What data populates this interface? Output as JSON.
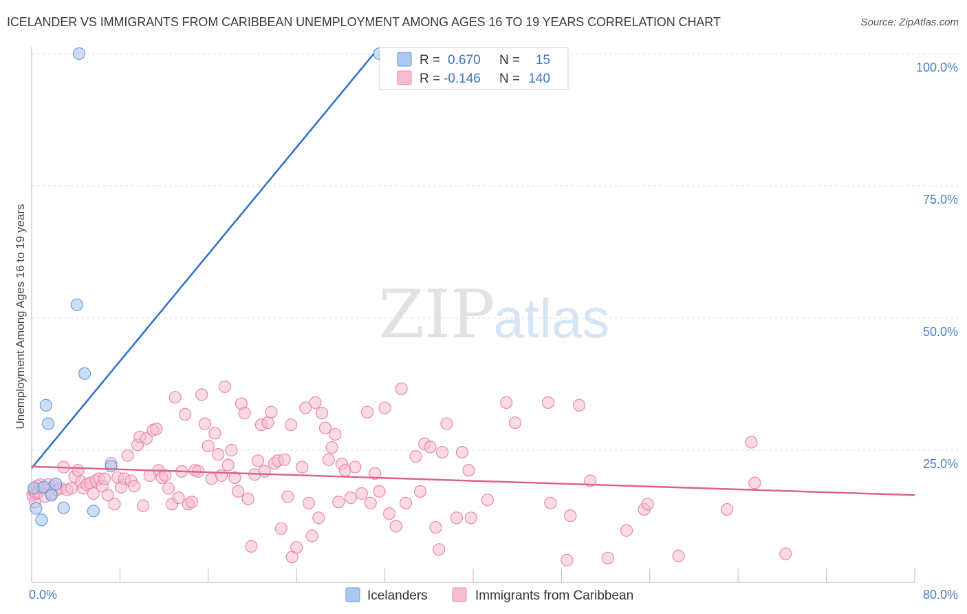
{
  "chart_data": {
    "type": "scatter",
    "title": "ICELANDER VS IMMIGRANTS FROM CARIBBEAN UNEMPLOYMENT AMONG AGES 16 TO 19 YEARS CORRELATION CHART",
    "source": "Source: ZipAtlas.com",
    "xlabel": "",
    "ylabel": "Unemployment Among Ages 16 to 19 years",
    "xlim": [
      0,
      80
    ],
    "ylim": [
      0,
      100
    ],
    "x_tick_labels": [
      "0.0%",
      "80.0%"
    ],
    "y_tick_values": [
      25,
      50,
      75,
      100
    ],
    "y_tick_labels": [
      "25.0%",
      "50.0%",
      "75.0%",
      "100.0%"
    ],
    "watermark": {
      "part1": "ZIP",
      "part2": "atlas"
    },
    "legend_top": [
      {
        "r_label": "R =",
        "r_value": "0.670",
        "n_label": "N =",
        "n_value": "15"
      },
      {
        "r_label": "R =",
        "r_value": "-0.146",
        "n_label": "N =",
        "n_value": "140"
      }
    ],
    "colors": {
      "blue_fill": "#aac8f0",
      "blue_stroke": "#6a9ad8",
      "blue_line": "#2b6fcc",
      "pink_fill": "#f6bccf",
      "pink_stroke": "#e889a8",
      "pink_line": "#e0608e",
      "axis_text": "#4a7fc8",
      "grid": "#dddddd"
    },
    "series": [
      {
        "name": "Icelanders",
        "trend": {
          "x": [
            0,
            31
          ],
          "y": [
            21.6,
            100
          ]
        },
        "points": [
          [
            0.2,
            17.8
          ],
          [
            0.4,
            14.0
          ],
          [
            0.9,
            11.8
          ],
          [
            1.1,
            18.0
          ],
          [
            1.3,
            33.5
          ],
          [
            1.5,
            30.0
          ],
          [
            1.8,
            16.5
          ],
          [
            2.2,
            18.6
          ],
          [
            2.9,
            14.1
          ],
          [
            4.1,
            52.5
          ],
          [
            4.3,
            100
          ],
          [
            4.8,
            39.5
          ],
          [
            5.6,
            13.5
          ],
          [
            7.2,
            22.0
          ],
          [
            31.5,
            100
          ]
        ]
      },
      {
        "name": "Immigrants from Caribbean",
        "trend": {
          "x": [
            0,
            80
          ],
          "y": [
            21.9,
            16.5
          ]
        },
        "points": [
          [
            0.1,
            16.5
          ],
          [
            0.2,
            17.2
          ],
          [
            0.3,
            15.2
          ],
          [
            0.4,
            16.8
          ],
          [
            0.5,
            18.2
          ],
          [
            0.6,
            17.0
          ],
          [
            0.8,
            18.5
          ],
          [
            1.0,
            17.8
          ],
          [
            1.2,
            16.2
          ],
          [
            1.5,
            18.5
          ],
          [
            1.8,
            16.8
          ],
          [
            2.0,
            18.2
          ],
          [
            2.3,
            17.5
          ],
          [
            2.6,
            17.8
          ],
          [
            2.9,
            21.8
          ],
          [
            3.2,
            17.5
          ],
          [
            3.6,
            17.8
          ],
          [
            3.9,
            20.0
          ],
          [
            4.2,
            21.2
          ],
          [
            4.5,
            19.0
          ],
          [
            4.7,
            17.8
          ],
          [
            5.0,
            18.5
          ],
          [
            5.3,
            18.8
          ],
          [
            5.6,
            16.8
          ],
          [
            5.8,
            19.2
          ],
          [
            6.1,
            19.6
          ],
          [
            6.4,
            18.2
          ],
          [
            6.6,
            19.6
          ],
          [
            6.9,
            16.5
          ],
          [
            7.2,
            22.5
          ],
          [
            7.5,
            14.8
          ],
          [
            7.8,
            19.8
          ],
          [
            8.1,
            18.0
          ],
          [
            8.4,
            19.6
          ],
          [
            8.7,
            24.0
          ],
          [
            9.0,
            19.2
          ],
          [
            9.3,
            18.2
          ],
          [
            9.6,
            26.0
          ],
          [
            9.8,
            27.5
          ],
          [
            10.1,
            14.5
          ],
          [
            10.4,
            27.2
          ],
          [
            10.7,
            20.2
          ],
          [
            11.0,
            28.8
          ],
          [
            11.3,
            29.0
          ],
          [
            11.5,
            21.2
          ],
          [
            11.8,
            19.8
          ],
          [
            12.1,
            20.2
          ],
          [
            12.4,
            17.8
          ],
          [
            12.7,
            14.8
          ],
          [
            13.0,
            35.0
          ],
          [
            13.3,
            16.0
          ],
          [
            13.6,
            21.0
          ],
          [
            13.9,
            31.8
          ],
          [
            14.2,
            14.8
          ],
          [
            14.5,
            15.2
          ],
          [
            14.8,
            21.2
          ],
          [
            15.1,
            21.0
          ],
          [
            15.4,
            35.5
          ],
          [
            15.7,
            30.0
          ],
          [
            16.0,
            25.8
          ],
          [
            16.3,
            19.6
          ],
          [
            16.6,
            28.2
          ],
          [
            16.9,
            24.2
          ],
          [
            17.2,
            20.2
          ],
          [
            17.5,
            37.0
          ],
          [
            17.8,
            22.2
          ],
          [
            18.1,
            25.0
          ],
          [
            18.4,
            19.8
          ],
          [
            18.7,
            17.2
          ],
          [
            19.0,
            33.8
          ],
          [
            19.3,
            32.0
          ],
          [
            19.6,
            15.8
          ],
          [
            19.9,
            6.8
          ],
          [
            20.2,
            20.4
          ],
          [
            20.5,
            23.0
          ],
          [
            20.8,
            29.8
          ],
          [
            21.1,
            21.0
          ],
          [
            21.4,
            30.2
          ],
          [
            21.7,
            32.2
          ],
          [
            22.0,
            22.5
          ],
          [
            22.3,
            23.0
          ],
          [
            22.6,
            10.2
          ],
          [
            22.9,
            23.2
          ],
          [
            23.2,
            16.2
          ],
          [
            23.5,
            29.8
          ],
          [
            23.6,
            4.8
          ],
          [
            24.0,
            6.6
          ],
          [
            24.5,
            21.8
          ],
          [
            24.8,
            33.0
          ],
          [
            25.1,
            15.0
          ],
          [
            25.4,
            8.8
          ],
          [
            25.7,
            34.0
          ],
          [
            26.0,
            12.2
          ],
          [
            26.3,
            32.0
          ],
          [
            26.6,
            29.2
          ],
          [
            26.9,
            23.2
          ],
          [
            27.2,
            25.5
          ],
          [
            27.5,
            28.0
          ],
          [
            27.8,
            15.2
          ],
          [
            28.1,
            22.4
          ],
          [
            28.4,
            21.2
          ],
          [
            28.9,
            16.0
          ],
          [
            29.3,
            21.8
          ],
          [
            29.9,
            16.8
          ],
          [
            30.4,
            32.2
          ],
          [
            30.7,
            15.0
          ],
          [
            31.1,
            20.6
          ],
          [
            31.5,
            17.2
          ],
          [
            32.0,
            33.0
          ],
          [
            32.4,
            13.0
          ],
          [
            33.0,
            10.6
          ],
          [
            33.5,
            36.6
          ],
          [
            33.9,
            15.0
          ],
          [
            34.8,
            23.8
          ],
          [
            35.2,
            17.2
          ],
          [
            35.6,
            26.2
          ],
          [
            36.1,
            25.6
          ],
          [
            36.6,
            10.4
          ],
          [
            36.9,
            6.2
          ],
          [
            37.2,
            24.6
          ],
          [
            37.6,
            30.0
          ],
          [
            38.5,
            12.2
          ],
          [
            39.0,
            24.6
          ],
          [
            39.6,
            21.2
          ],
          [
            39.8,
            12.2
          ],
          [
            41.3,
            15.6
          ],
          [
            43.0,
            34.0
          ],
          [
            43.8,
            30.2
          ],
          [
            46.8,
            34.0
          ],
          [
            47.0,
            15.0
          ],
          [
            48.5,
            4.2
          ],
          [
            48.8,
            12.6
          ],
          [
            49.6,
            33.5
          ],
          [
            50.6,
            19.2
          ],
          [
            52.2,
            4.6
          ],
          [
            53.9,
            9.8
          ],
          [
            55.5,
            13.8
          ],
          [
            55.8,
            14.8
          ],
          [
            58.6,
            5.0
          ],
          [
            63.0,
            13.8
          ],
          [
            65.2,
            26.5
          ],
          [
            65.5,
            18.8
          ],
          [
            68.3,
            5.4
          ]
        ]
      }
    ],
    "legend_bottom": [
      "Icelanders",
      "Immigrants from Caribbean"
    ]
  }
}
